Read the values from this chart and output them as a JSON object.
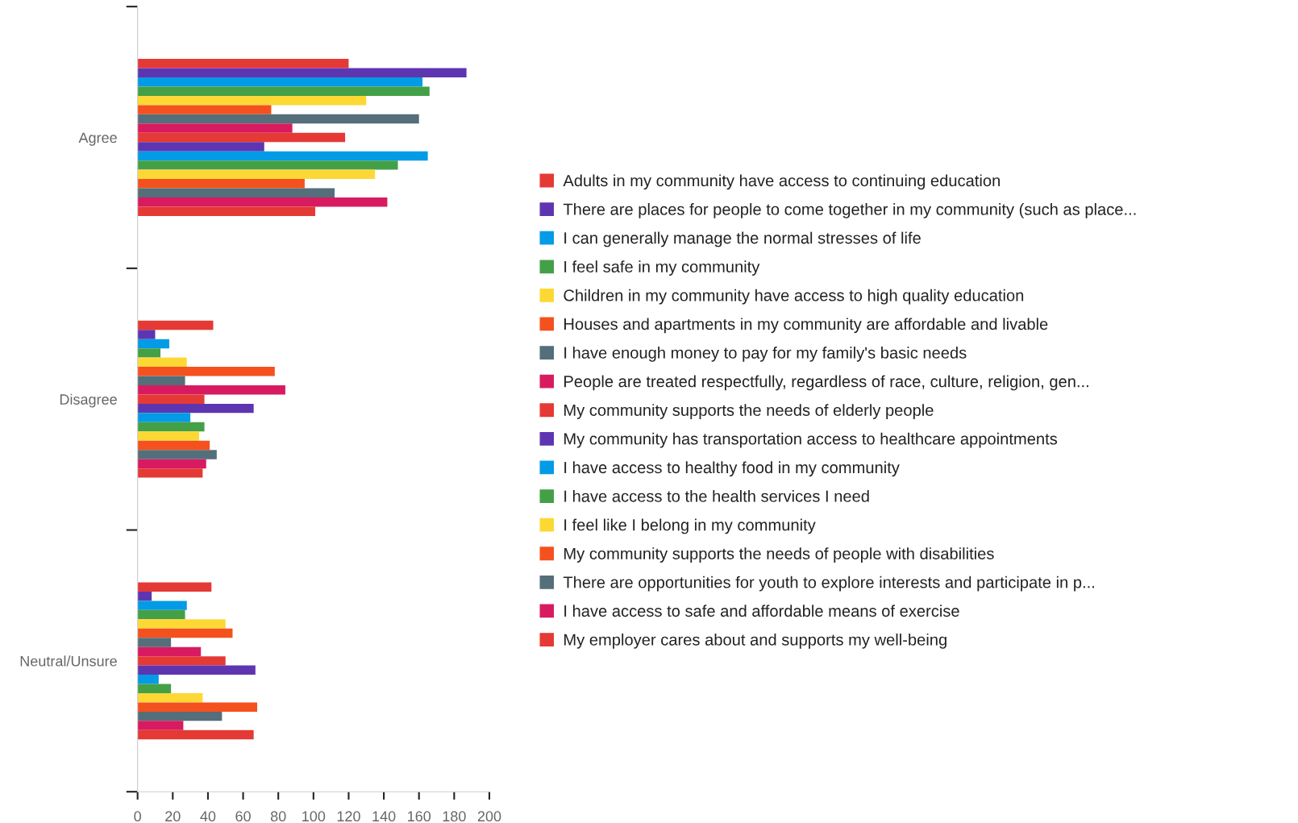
{
  "chart_data": {
    "type": "bar",
    "orientation": "horizontal",
    "categories": [
      "Agree",
      "Disagree",
      "Neutral/Unsure"
    ],
    "xlim": [
      0,
      200
    ],
    "xticks": [
      0,
      20,
      40,
      60,
      80,
      100,
      120,
      140,
      160,
      180,
      200
    ],
    "grid": false,
    "legend": "right",
    "series": [
      {
        "name": "Adults in my community have access to continuing education",
        "color": "#e53935",
        "values": [
          120,
          43,
          42
        ]
      },
      {
        "name": "There are places for people to come together in my community (such as place...",
        "color": "#5e35b1",
        "values": [
          187,
          10,
          8
        ]
      },
      {
        "name": "I can generally manage the normal stresses of life",
        "color": "#039be5",
        "values": [
          162,
          18,
          28
        ]
      },
      {
        "name": "I feel safe in my community",
        "color": "#43a047",
        "values": [
          166,
          13,
          27
        ]
      },
      {
        "name": "Children in my community have access to high quality education",
        "color": "#fdd835",
        "values": [
          130,
          28,
          50
        ]
      },
      {
        "name": "Houses and apartments in my community are affordable and livable",
        "color": "#f4511e",
        "values": [
          76,
          78,
          54
        ]
      },
      {
        "name": "I have enough money to pay for my family's basic needs",
        "color": "#546e7a",
        "values": [
          160,
          27,
          19
        ]
      },
      {
        "name": "People are treated respectfully, regardless of race, culture, religion, gen...",
        "color": "#d81b60",
        "values": [
          88,
          84,
          36
        ]
      },
      {
        "name": "My community supports the needs of elderly people",
        "color": "#e53935",
        "values": [
          118,
          38,
          50
        ]
      },
      {
        "name": "My community has transportation access to healthcare appointments",
        "color": "#5e35b1",
        "values": [
          72,
          66,
          67
        ]
      },
      {
        "name": "I have access to healthy food in my community",
        "color": "#039be5",
        "values": [
          165,
          30,
          12
        ]
      },
      {
        "name": "I have access to the health services I need",
        "color": "#43a047",
        "values": [
          148,
          38,
          19
        ]
      },
      {
        "name": "I feel like I belong in my community",
        "color": "#fdd835",
        "values": [
          135,
          35,
          37
        ]
      },
      {
        "name": "My community supports the needs of people with disabilities",
        "color": "#f4511e",
        "values": [
          95,
          41,
          68
        ]
      },
      {
        "name": "There are opportunities for youth to explore interests and participate in p...",
        "color": "#546e7a",
        "values": [
          112,
          45,
          48
        ]
      },
      {
        "name": "I have access to safe and affordable means of exercise",
        "color": "#d81b60",
        "values": [
          142,
          39,
          26
        ]
      },
      {
        "name": "My employer cares about and supports my well-being",
        "color": "#e53935",
        "values": [
          101,
          37,
          66
        ]
      }
    ]
  }
}
